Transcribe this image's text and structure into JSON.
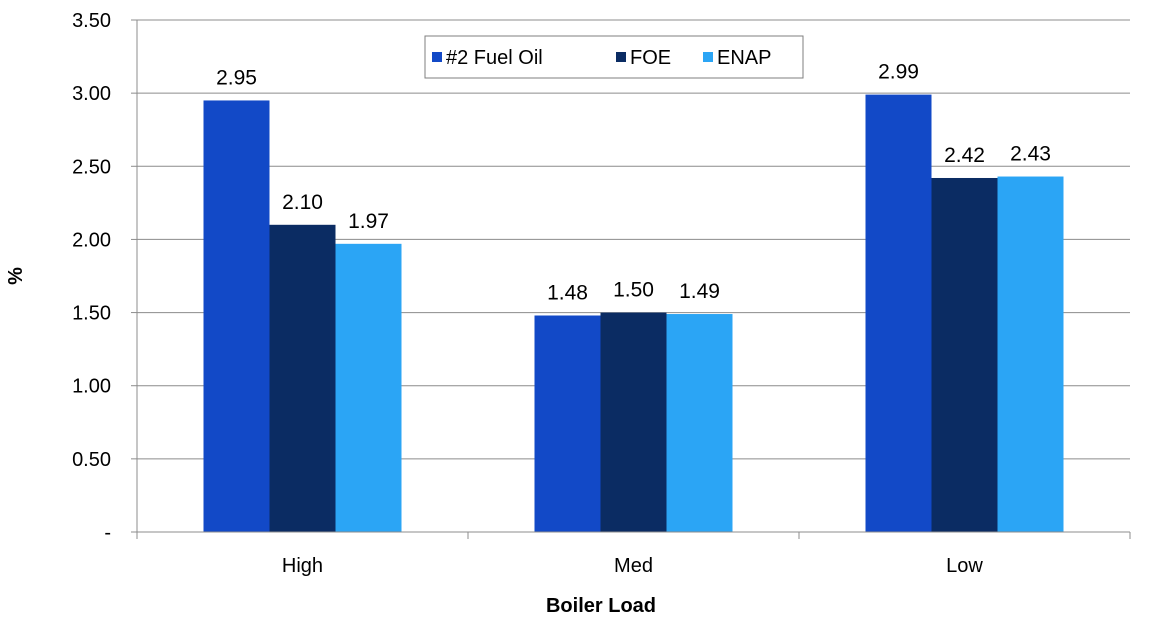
{
  "chart_data": {
    "type": "bar",
    "title": "",
    "xlabel": "Boiler Load",
    "ylabel": "%",
    "categories": [
      "High",
      "Med",
      "Low"
    ],
    "series": [
      {
        "name": "#2 Fuel Oil",
        "color": "#1249c7",
        "values": [
          2.95,
          1.48,
          2.99
        ],
        "labels": [
          "2.95",
          "1.48",
          "2.99"
        ]
      },
      {
        "name": "FOE",
        "color": "#0b2c63",
        "values": [
          2.1,
          1.5,
          2.42
        ],
        "labels": [
          "2.10",
          "1.50",
          "2.42"
        ]
      },
      {
        "name": "ENAP",
        "color": "#2ba5f5",
        "values": [
          1.97,
          1.49,
          2.43
        ],
        "labels": [
          "1.97",
          "1.49",
          "2.43"
        ]
      }
    ],
    "ylim": [
      0,
      3.5
    ],
    "yticks": [
      0,
      0.5,
      1.0,
      1.5,
      2.0,
      2.5,
      3.0,
      3.5
    ],
    "ytick_labels": [
      "-",
      "0.50",
      "1.00",
      "1.50",
      "2.00",
      "2.50",
      "3.00",
      "3.50"
    ],
    "grid": true,
    "legend_position": "top-center"
  }
}
